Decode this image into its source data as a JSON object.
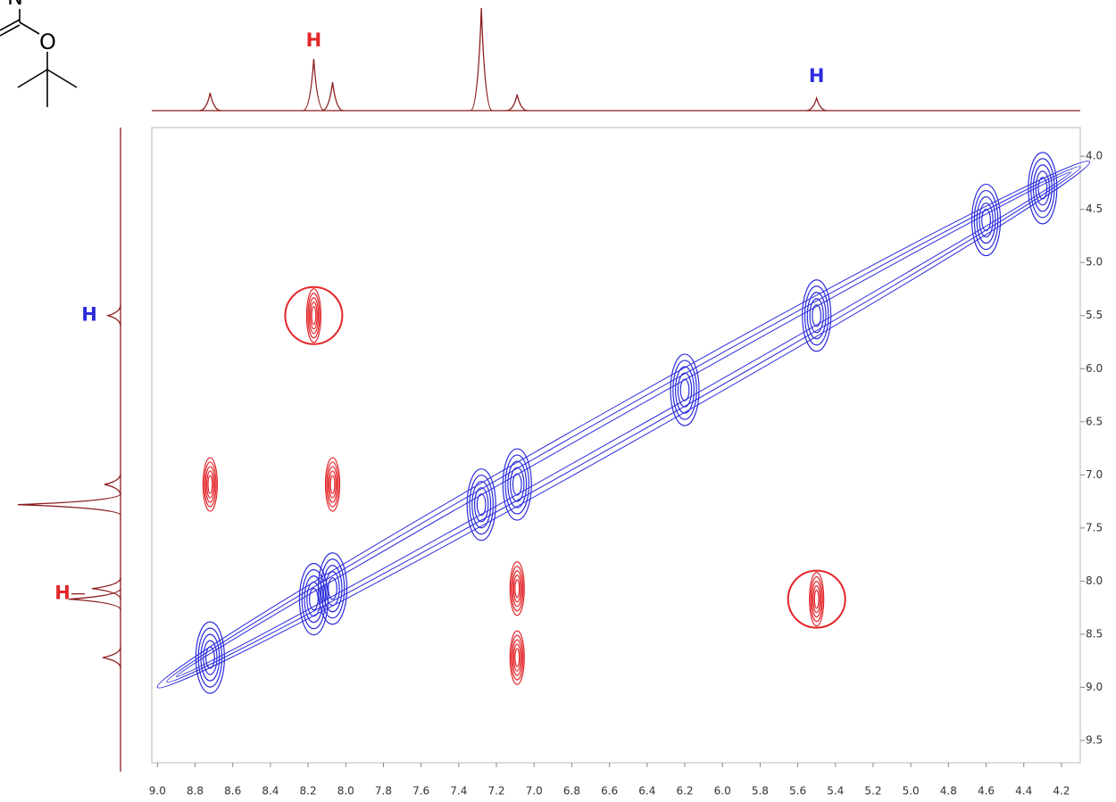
{
  "chart_data": {
    "type": "contour",
    "xlim": [
      9.03,
      4.1
    ],
    "ylim": [
      3.73,
      9.71
    ],
    "xticks": [
      {
        "value": 9,
        "label": "9.0"
      },
      8.8,
      8.6,
      8.4,
      8.2,
      {
        "value": 8,
        "label": "8.0"
      },
      7.8,
      7.6,
      7.4,
      7.2,
      {
        "value": 7,
        "label": "7.0"
      },
      6.8,
      6.6,
      6.4,
      6.2,
      {
        "value": 6,
        "label": "6.0"
      },
      5.8,
      5.6,
      5.4,
      5.2,
      {
        "value": 5,
        "label": "5.0"
      },
      4.8,
      4.6,
      4.4,
      4.2
    ],
    "yticks": [
      {
        "value": 4,
        "label": "4.0"
      },
      4.5,
      {
        "value": 5,
        "label": "5.0"
      },
      5.5,
      {
        "value": 6,
        "label": "6.0"
      },
      6.5,
      {
        "value": 7,
        "label": "7.0"
      },
      7.5,
      {
        "value": 8,
        "label": "8.0"
      },
      8.5,
      {
        "value": 9,
        "label": "9.0"
      },
      9.5
    ],
    "trace_color": "#8b1c1c",
    "positive_color": "#2b2bdc",
    "negative_color": "#e3262a",
    "peaks": [
      {
        "x": 8.72,
        "y": 8.72,
        "sign": "positive",
        "highlight": false
      },
      {
        "x": 8.17,
        "y": 8.17,
        "sign": "positive",
        "highlight": false
      },
      {
        "x": 8.07,
        "y": 8.07,
        "sign": "positive",
        "highlight": false
      },
      {
        "x": 7.28,
        "y": 7.28,
        "sign": "positive",
        "highlight": false
      },
      {
        "x": 7.09,
        "y": 7.09,
        "sign": "positive",
        "highlight": false
      },
      {
        "x": 6.2,
        "y": 6.2,
        "sign": "positive",
        "highlight": false
      },
      {
        "x": 5.5,
        "y": 5.5,
        "sign": "positive",
        "highlight": false
      },
      {
        "x": 4.6,
        "y": 4.6,
        "sign": "positive",
        "highlight": false
      },
      {
        "x": 4.3,
        "y": 4.3,
        "sign": "positive",
        "highlight": false
      },
      {
        "x": 8.17,
        "y": 5.5,
        "sign": "negative",
        "highlight": true
      },
      {
        "x": 5.5,
        "y": 8.17,
        "sign": "negative",
        "highlight": true
      },
      {
        "x": 8.72,
        "y": 7.09,
        "sign": "negative",
        "highlight": false
      },
      {
        "x": 8.07,
        "y": 7.09,
        "sign": "negative",
        "highlight": false
      },
      {
        "x": 7.09,
        "y": 8.07,
        "sign": "negative",
        "highlight": false
      },
      {
        "x": 7.09,
        "y": 8.72,
        "sign": "negative",
        "highlight": false
      }
    ],
    "projection": {
      "ppm": [
        8.72,
        8.17,
        8.07,
        7.28,
        7.09,
        5.5
      ],
      "intensity": [
        20,
        58,
        32,
        115,
        18,
        14
      ]
    },
    "annotations": [
      {
        "text": "H",
        "color": "#e3262a",
        "axis": "x",
        "at": 8.17
      },
      {
        "text": "H",
        "color": "#2b2bdc",
        "axis": "x",
        "at": 5.5
      },
      {
        "text": "H",
        "color": "#2b2bdc",
        "axis": "y",
        "at": 5.5
      },
      {
        "text": "H",
        "color": "#e3262a",
        "axis": "y",
        "at": 8.12
      }
    ]
  },
  "structure": {
    "atoms": [
      "N",
      "O"
    ]
  }
}
